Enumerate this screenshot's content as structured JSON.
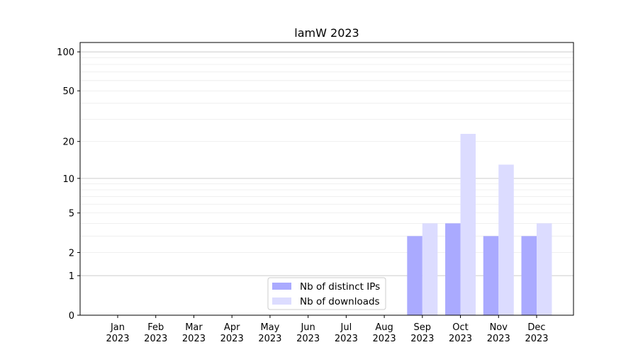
{
  "chart_data": {
    "type": "bar",
    "title": "lamW 2023",
    "xlabel": "",
    "ylabel": "",
    "yscale": "symlog (log10(1+y))",
    "ylim": [
      0,
      110
    ],
    "yticks": [
      0,
      1,
      2,
      5,
      10,
      20,
      50,
      100
    ],
    "grid": true,
    "legend_position": "bottom-center",
    "categories": [
      "Jan\n2023",
      "Feb\n2023",
      "Mar\n2023",
      "Apr\n2023",
      "May\n2023",
      "Jun\n2023",
      "Jul\n2023",
      "Aug\n2023",
      "Sep\n2023",
      "Oct\n2023",
      "Nov\n2023",
      "Dec\n2023"
    ],
    "series": [
      {
        "name": "Nb of distinct IPs",
        "color": "#aaaaff",
        "values": [
          0,
          0,
          0,
          0,
          0,
          0,
          0,
          0,
          3,
          4,
          3,
          3
        ]
      },
      {
        "name": "Nb of downloads",
        "color": "#dcdcff",
        "values": [
          0,
          0,
          0,
          0,
          0,
          0,
          0,
          0,
          4,
          23,
          13,
          4
        ]
      }
    ]
  }
}
